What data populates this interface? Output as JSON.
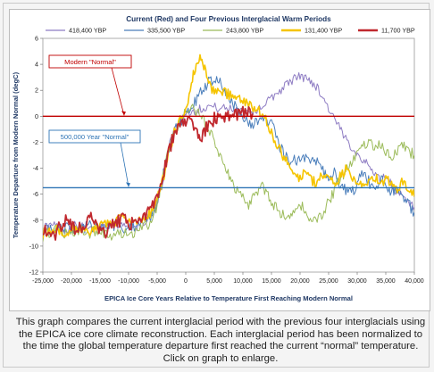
{
  "caption": "This graph compares the current interglacial period with the previous four interglacials using the EPICA ice core climate reconstruction. Each interglacial period has been normalized to the time the global temperature departure first reached the current “normal” temperature. Click on graph to enlarge.",
  "chart_data": {
    "type": "line",
    "title": "Current (Red) and Four Previous Interglacial Warm Periods",
    "xlabel": "EPICA Ice Core Years  Relative to Temperature First Reaching Modern Normal",
    "ylabel": "Temperature Departure from Modern Normal (degC)",
    "xlim": [
      -25000,
      40000
    ],
    "ylim": [
      -12,
      6
    ],
    "xticks": [
      "-25,000",
      "-20,000",
      "-15,000",
      "-10,000",
      "-5,000",
      "0",
      "5,000",
      "10,000",
      "15,000",
      "20,000",
      "25,000",
      "30,000",
      "35,000",
      "40,000"
    ],
    "yticks": [
      "-12",
      "-10",
      "-8",
      "-6",
      "-4",
      "-2",
      "0",
      "2",
      "4",
      "6"
    ],
    "legend_position": "top",
    "grid": false,
    "reference_lines": [
      {
        "label": "Modern \"Normal\"",
        "y": 0,
        "color": "#c00000"
      },
      {
        "label": "500,000 Year \"Normal\"",
        "y": -5.5,
        "color": "#2e74b5"
      }
    ],
    "series": [
      {
        "name": "418,400 YBP",
        "color": "#8e7cc3",
        "points": [
          [
            -25000,
            -8.5
          ],
          [
            -23000,
            -8.4
          ],
          [
            -21000,
            -8.8
          ],
          [
            -19000,
            -8.3
          ],
          [
            -17000,
            -8.8
          ],
          [
            -15000,
            -8.5
          ],
          [
            -13000,
            -8.2
          ],
          [
            -11000,
            -8.4
          ],
          [
            -9000,
            -8.6
          ],
          [
            -7000,
            -8.0
          ],
          [
            -5500,
            -7.5
          ],
          [
            -4000,
            -5.0
          ],
          [
            -3000,
            -2.5
          ],
          [
            -2000,
            -1.0
          ],
          [
            -1000,
            -0.3
          ],
          [
            0,
            0.2
          ],
          [
            2000,
            0.5
          ],
          [
            4000,
            0.8
          ],
          [
            6000,
            0.6
          ],
          [
            8000,
            0.6
          ],
          [
            10000,
            0.5
          ],
          [
            12000,
            0.4
          ],
          [
            14000,
            1.0
          ],
          [
            16000,
            1.8
          ],
          [
            18000,
            2.6
          ],
          [
            19000,
            2.9
          ],
          [
            20000,
            3.1
          ],
          [
            21000,
            2.9
          ],
          [
            22000,
            2.7
          ],
          [
            23000,
            2.2
          ],
          [
            24000,
            1.5
          ],
          [
            25000,
            0.6
          ],
          [
            26000,
            -0.2
          ],
          [
            27000,
            -1.0
          ],
          [
            28000,
            -1.8
          ],
          [
            29000,
            -2.3
          ],
          [
            30000,
            -2.9
          ],
          [
            31000,
            -3.3
          ],
          [
            32000,
            -3.9
          ],
          [
            33000,
            -4.3
          ],
          [
            34000,
            -4.9
          ],
          [
            35000,
            -4.5
          ],
          [
            36000,
            -5.3
          ],
          [
            37000,
            -5.8
          ],
          [
            38000,
            -6.3
          ],
          [
            39000,
            -6.8
          ],
          [
            40000,
            -7.0
          ]
        ]
      },
      {
        "name": "335,500 YBP",
        "color": "#4a7ebb",
        "points": [
          [
            -25000,
            -8.6
          ],
          [
            -23000,
            -8.9
          ],
          [
            -21000,
            -8.5
          ],
          [
            -19000,
            -8.9
          ],
          [
            -17000,
            -8.4
          ],
          [
            -15000,
            -8.7
          ],
          [
            -13000,
            -8.3
          ],
          [
            -11000,
            -8.6
          ],
          [
            -9000,
            -8.4
          ],
          [
            -7000,
            -8.0
          ],
          [
            -5500,
            -7.6
          ],
          [
            -4500,
            -5.8
          ],
          [
            -3500,
            -3.6
          ],
          [
            -2500,
            -1.8
          ],
          [
            -1500,
            -0.7
          ],
          [
            -500,
            -0.2
          ],
          [
            0,
            0.3
          ],
          [
            1000,
            0.5
          ],
          [
            2000,
            1.4
          ],
          [
            3000,
            2.0
          ],
          [
            4000,
            2.6
          ],
          [
            5000,
            2.8
          ],
          [
            6000,
            2.5
          ],
          [
            7000,
            1.8
          ],
          [
            8000,
            1.2
          ],
          [
            9000,
            0.6
          ],
          [
            10000,
            0.1
          ],
          [
            11000,
            -0.4
          ],
          [
            12000,
            -0.6
          ],
          [
            13000,
            -0.5
          ],
          [
            14000,
            -0.2
          ],
          [
            15000,
            -0.6
          ],
          [
            16000,
            -1.8
          ],
          [
            17000,
            -2.8
          ],
          [
            18000,
            -3.5
          ],
          [
            19000,
            -3.2
          ],
          [
            20000,
            -3.5
          ],
          [
            21000,
            -3.1
          ],
          [
            22000,
            -3.6
          ],
          [
            23000,
            -3.4
          ],
          [
            24000,
            -4.2
          ],
          [
            25000,
            -4.6
          ],
          [
            26000,
            -4.3
          ],
          [
            27000,
            -5.2
          ],
          [
            28000,
            -5.6
          ],
          [
            29000,
            -6.0
          ],
          [
            30000,
            -5.2
          ],
          [
            31000,
            -4.4
          ],
          [
            32000,
            -5.0
          ],
          [
            33000,
            -5.7
          ],
          [
            34000,
            -4.9
          ],
          [
            35000,
            -5.2
          ],
          [
            36000,
            -5.8
          ],
          [
            37000,
            -5.4
          ],
          [
            38000,
            -6.2
          ],
          [
            39000,
            -6.8
          ],
          [
            40000,
            -7.4
          ]
        ]
      },
      {
        "name": "243,800 YBP",
        "color": "#9bbb59",
        "points": [
          [
            -25000,
            -9.2
          ],
          [
            -23000,
            -8.8
          ],
          [
            -21000,
            -9.1
          ],
          [
            -19000,
            -8.7
          ],
          [
            -17000,
            -9.0
          ],
          [
            -15000,
            -8.8
          ],
          [
            -13000,
            -9.3
          ],
          [
            -11000,
            -8.9
          ],
          [
            -9000,
            -9.1
          ],
          [
            -7000,
            -8.5
          ],
          [
            -6000,
            -8.1
          ],
          [
            -5000,
            -6.8
          ],
          [
            -4000,
            -4.8
          ],
          [
            -3000,
            -2.6
          ],
          [
            -2000,
            -1.2
          ],
          [
            -1000,
            -0.4
          ],
          [
            0,
            0.3
          ],
          [
            1000,
            0.7
          ],
          [
            2000,
            0.3
          ],
          [
            3000,
            -0.3
          ],
          [
            4000,
            -1.0
          ],
          [
            5000,
            -1.9
          ],
          [
            6000,
            -2.9
          ],
          [
            7000,
            -3.9
          ],
          [
            8000,
            -4.9
          ],
          [
            9000,
            -5.8
          ],
          [
            10000,
            -6.4
          ],
          [
            11000,
            -6.8
          ],
          [
            12000,
            -6.2
          ],
          [
            13000,
            -5.3
          ],
          [
            14000,
            -5.7
          ],
          [
            15000,
            -6.6
          ],
          [
            16000,
            -7.2
          ],
          [
            17000,
            -7.6
          ],
          [
            18000,
            -8.0
          ],
          [
            19000,
            -7.5
          ],
          [
            20000,
            -6.8
          ],
          [
            21000,
            -7.3
          ],
          [
            22000,
            -7.9
          ],
          [
            23000,
            -8.0
          ],
          [
            24000,
            -7.4
          ],
          [
            25000,
            -6.6
          ],
          [
            26000,
            -5.7
          ],
          [
            27000,
            -4.8
          ],
          [
            28000,
            -4.2
          ],
          [
            29000,
            -3.6
          ],
          [
            30000,
            -2.8
          ],
          [
            31000,
            -2.2
          ],
          [
            32000,
            -2.0
          ],
          [
            33000,
            -2.3
          ],
          [
            34000,
            -2.0
          ],
          [
            35000,
            -2.6
          ],
          [
            36000,
            -3.1
          ],
          [
            37000,
            -2.6
          ],
          [
            38000,
            -2.3
          ],
          [
            39000,
            -2.7
          ],
          [
            40000,
            -3.0
          ]
        ]
      },
      {
        "name": "131,400 YBP",
        "color": "#f5c400",
        "points": [
          [
            -25000,
            -9.0
          ],
          [
            -23000,
            -8.7
          ],
          [
            -21000,
            -9.0
          ],
          [
            -19000,
            -8.6
          ],
          [
            -17000,
            -8.9
          ],
          [
            -15000,
            -8.5
          ],
          [
            -13000,
            -8.2
          ],
          [
            -11000,
            -7.8
          ],
          [
            -9000,
            -8.1
          ],
          [
            -7000,
            -7.9
          ],
          [
            -6000,
            -7.4
          ],
          [
            -5000,
            -6.4
          ],
          [
            -4000,
            -4.9
          ],
          [
            -3000,
            -2.8
          ],
          [
            -2000,
            -1.3
          ],
          [
            -1000,
            -0.2
          ],
          [
            0,
            0.6
          ],
          [
            1000,
            2.5
          ],
          [
            1500,
            3.6
          ],
          [
            2000,
            4.2
          ],
          [
            2500,
            4.6
          ],
          [
            3000,
            4.1
          ],
          [
            3500,
            3.3
          ],
          [
            4000,
            2.4
          ],
          [
            5000,
            2.0
          ],
          [
            6000,
            2.1
          ],
          [
            7000,
            1.8
          ],
          [
            8000,
            1.6
          ],
          [
            9000,
            1.4
          ],
          [
            10000,
            1.2
          ],
          [
            11000,
            1.0
          ],
          [
            12000,
            0.6
          ],
          [
            13000,
            0.3
          ],
          [
            14000,
            -0.3
          ],
          [
            15000,
            -1.3
          ],
          [
            16000,
            -2.2
          ],
          [
            17000,
            -3.0
          ],
          [
            18000,
            -3.8
          ],
          [
            19000,
            -4.3
          ],
          [
            20000,
            -4.8
          ],
          [
            21000,
            -4.3
          ],
          [
            22000,
            -4.9
          ],
          [
            23000,
            -5.1
          ],
          [
            24000,
            -4.4
          ],
          [
            25000,
            -4.8
          ],
          [
            26000,
            -5.3
          ],
          [
            27000,
            -4.6
          ],
          [
            28000,
            -4.1
          ],
          [
            29000,
            -4.6
          ],
          [
            30000,
            -5.1
          ],
          [
            31000,
            -5.4
          ],
          [
            32000,
            -5.0
          ],
          [
            33000,
            -4.6
          ],
          [
            34000,
            -5.2
          ],
          [
            35000,
            -4.8
          ],
          [
            36000,
            -5.3
          ],
          [
            37000,
            -5.6
          ],
          [
            38000,
            -5.0
          ],
          [
            39000,
            -5.5
          ],
          [
            40000,
            -6.2
          ]
        ]
      },
      {
        "name": "11,700 YBP",
        "color": "#c0282e",
        "points": [
          [
            -25000,
            -8.6
          ],
          [
            -24000,
            -8.9
          ],
          [
            -23000,
            -9.1
          ],
          [
            -22000,
            -8.5
          ],
          [
            -21000,
            -8.0
          ],
          [
            -20000,
            -8.3
          ],
          [
            -19000,
            -8.8
          ],
          [
            -18000,
            -8.6
          ],
          [
            -17000,
            -7.8
          ],
          [
            -16000,
            -8.1
          ],
          [
            -15000,
            -8.7
          ],
          [
            -14000,
            -8.9
          ],
          [
            -13000,
            -8.5
          ],
          [
            -12000,
            -8.2
          ],
          [
            -11000,
            -7.9
          ],
          [
            -10000,
            -8.2
          ],
          [
            -9000,
            -8.4
          ],
          [
            -8000,
            -8.0
          ],
          [
            -7000,
            -7.6
          ],
          [
            -6000,
            -7.2
          ],
          [
            -5000,
            -6.2
          ],
          [
            -4000,
            -4.5
          ],
          [
            -3000,
            -2.8
          ],
          [
            -2000,
            -1.2
          ],
          [
            -1000,
            -0.5
          ],
          [
            0,
            -0.2
          ],
          [
            1000,
            -0.6
          ],
          [
            2000,
            -1.3
          ],
          [
            2500,
            -2.0
          ],
          [
            3000,
            -1.5
          ],
          [
            4000,
            -0.6
          ],
          [
            5000,
            -0.2
          ],
          [
            6000,
            0.1
          ],
          [
            7000,
            0.0
          ],
          [
            8000,
            -0.3
          ],
          [
            9000,
            0.1
          ],
          [
            10000,
            0.3
          ],
          [
            11000,
            0.5
          ],
          [
            11700,
            0.2
          ]
        ]
      }
    ]
  }
}
